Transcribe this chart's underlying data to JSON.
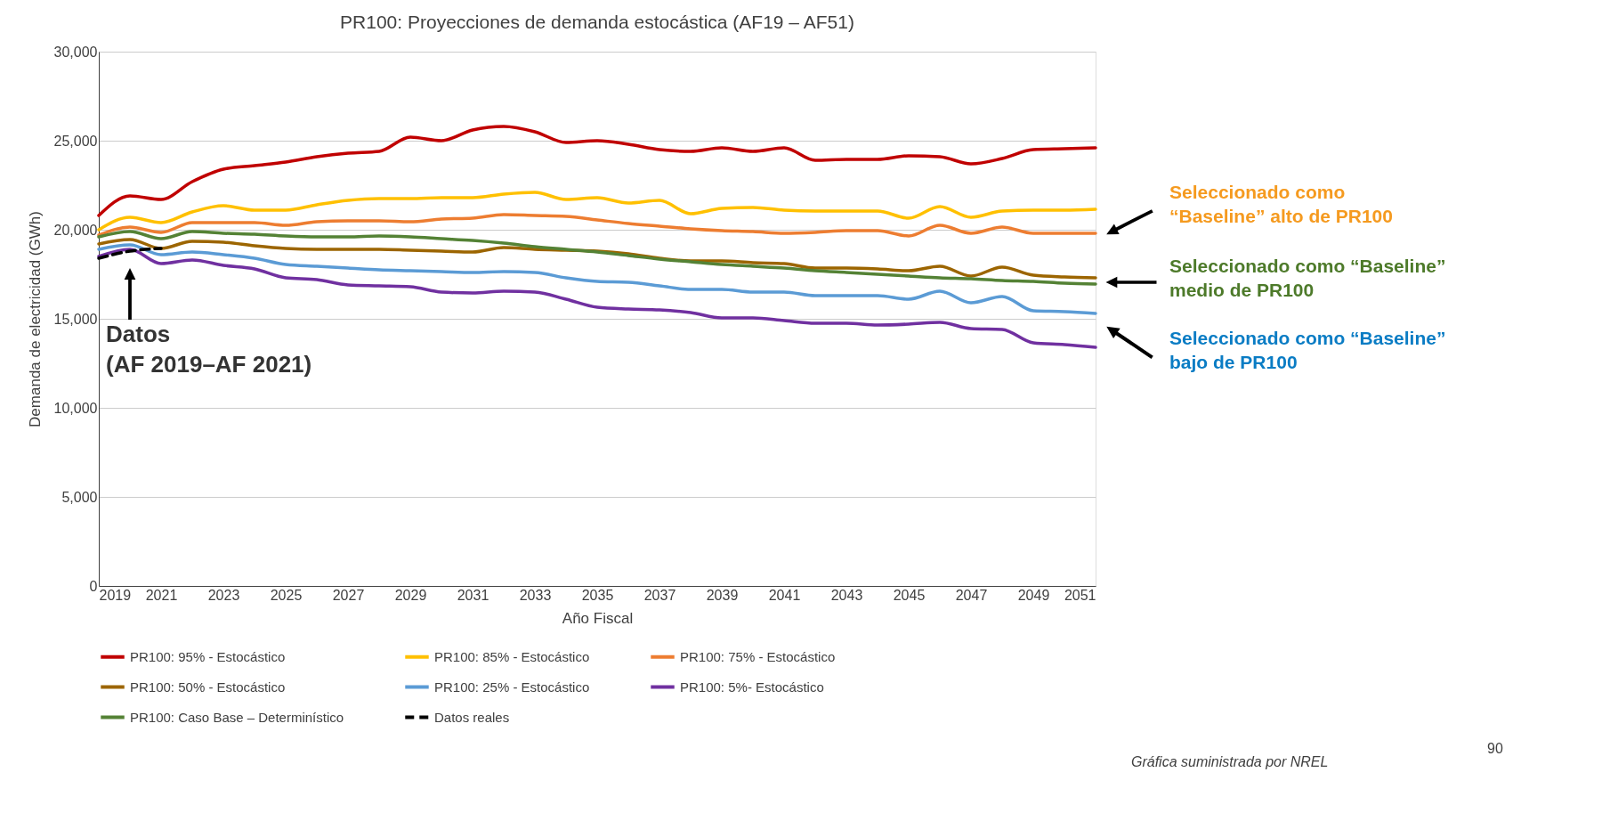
{
  "chart_data": {
    "type": "line",
    "title": "PR100: Proyecciones de demanda estocástica (AF19 – AF51)",
    "xlabel": "Año Fiscal",
    "ylabel": "Demanda de electricidad (GWh)",
    "x": [
      2019,
      2020,
      2021,
      2022,
      2023,
      2024,
      2025,
      2026,
      2027,
      2028,
      2029,
      2030,
      2031,
      2032,
      2033,
      2034,
      2035,
      2036,
      2037,
      2038,
      2039,
      2040,
      2041,
      2042,
      2043,
      2044,
      2045,
      2046,
      2047,
      2048,
      2049,
      2050,
      2051
    ],
    "xlim": [
      2019,
      2051
    ],
    "xticks": [
      2019,
      2021,
      2023,
      2025,
      2027,
      2029,
      2031,
      2033,
      2035,
      2037,
      2039,
      2041,
      2043,
      2045,
      2047,
      2049,
      2051
    ],
    "ylim": [
      0,
      30000
    ],
    "yticks": [
      {
        "value": 0,
        "label": "0"
      },
      {
        "value": 5000,
        "label": "5,000"
      },
      {
        "value": 10000,
        "label": "10,000"
      },
      {
        "value": 15000,
        "label": "15,000"
      },
      {
        "value": 20000,
        "label": "20,000"
      },
      {
        "value": 25000,
        "label": "25,000"
      },
      {
        "value": 30000,
        "label": "30,000"
      }
    ],
    "grid": "y",
    "legend": "bottom",
    "line_style": "solid",
    "series": [
      {
        "name": "PR100: 95% - Estocástico",
        "color": "#c00000",
        "values": [
          20800,
          21900,
          21700,
          22700,
          23400,
          23600,
          23800,
          24100,
          24300,
          24400,
          25200,
          25000,
          25600,
          25800,
          25500,
          24900,
          25000,
          24800,
          24500,
          24400,
          24600,
          24400,
          24600,
          23900,
          23950,
          23950,
          24150,
          24100,
          23700,
          24000,
          24500,
          24550,
          24600
        ]
      },
      {
        "name": "PR100: 85% - Estocástico",
        "color": "#ffc000",
        "values": [
          20000,
          20700,
          20400,
          21000,
          21350,
          21100,
          21100,
          21400,
          21650,
          21750,
          21750,
          21800,
          21800,
          22000,
          22100,
          21700,
          21800,
          21500,
          21650,
          20900,
          21200,
          21250,
          21100,
          21050,
          21050,
          21050,
          20650,
          21300,
          20700,
          21050,
          21100,
          21100,
          21150
        ]
      },
      {
        "name": "PR100: 75% - Estocástico",
        "color": "#ed7d31",
        "values": [
          19700,
          20150,
          19850,
          20400,
          20400,
          20400,
          20250,
          20450,
          20500,
          20500,
          20450,
          20600,
          20650,
          20850,
          20800,
          20750,
          20550,
          20350,
          20200,
          20050,
          19950,
          19900,
          19800,
          19850,
          19950,
          19950,
          19650,
          20250,
          19800,
          20150,
          19800,
          19800,
          19800
        ]
      },
      {
        "name": "PR100: 50% - Estocástico",
        "color": "#9c6500",
        "values": [
          19200,
          19450,
          18950,
          19350,
          19300,
          19100,
          18950,
          18900,
          18900,
          18900,
          18850,
          18800,
          18750,
          19000,
          18900,
          18850,
          18800,
          18650,
          18400,
          18250,
          18250,
          18150,
          18100,
          17850,
          17850,
          17800,
          17700,
          17950,
          17400,
          17900,
          17450,
          17350,
          17300
        ]
      },
      {
        "name": "PR100: 25% - Estocástico",
        "color": "#5b9bd5",
        "values": [
          18900,
          19150,
          18600,
          18750,
          18600,
          18400,
          18050,
          17950,
          17850,
          17750,
          17700,
          17650,
          17600,
          17650,
          17600,
          17300,
          17100,
          17050,
          16850,
          16650,
          16650,
          16500,
          16500,
          16300,
          16300,
          16300,
          16100,
          16550,
          15900,
          16250,
          15450,
          15400,
          15300
        ]
      },
      {
        "name": "PR100: 5%- Estocástico",
        "color": "#7030a0",
        "values": [
          18500,
          18900,
          18100,
          18300,
          18000,
          17800,
          17300,
          17200,
          16900,
          16850,
          16800,
          16500,
          16450,
          16550,
          16500,
          16100,
          15650,
          15550,
          15500,
          15350,
          15050,
          15050,
          14900,
          14750,
          14750,
          14650,
          14700,
          14800,
          14450,
          14400,
          13650,
          13550,
          13400
        ]
      },
      {
        "name": "PR100: Caso Base – Determinístico",
        "color": "#548235",
        "values": [
          19600,
          19900,
          19500,
          19900,
          19800,
          19750,
          19650,
          19600,
          19600,
          19650,
          19600,
          19500,
          19400,
          19250,
          19050,
          18900,
          18750,
          18550,
          18350,
          18200,
          18050,
          17950,
          17850,
          17700,
          17600,
          17500,
          17400,
          17300,
          17250,
          17150,
          17100,
          17000,
          16950
        ]
      },
      {
        "name": "Datos reales",
        "color": "#000000",
        "line_style": "dashed",
        "x": [
          2019,
          2020,
          2021
        ],
        "values": [
          18400,
          18800,
          18950
        ]
      }
    ],
    "annotations": [
      "Datos\n(AF 2019–AF 2021)",
      "Seleccionado como\n“Baseline” alto de PR100",
      "Seleccionado como “Baseline”\nmedio de PR100",
      "Seleccionado como “Baseline”\nbajo de PR100",
      "Gráfica suministrada por NREL",
      "90"
    ]
  }
}
